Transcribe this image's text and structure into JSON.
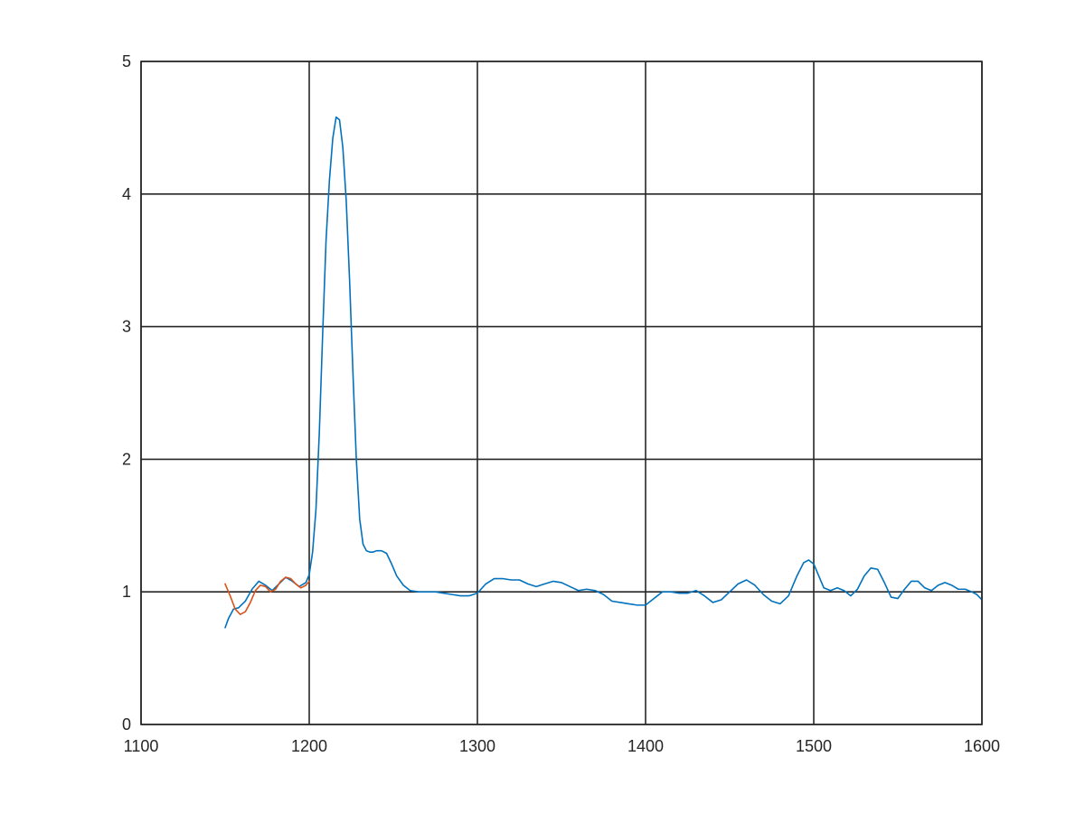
{
  "chart_data": {
    "type": "line",
    "title": "",
    "xlabel": "",
    "ylabel": "",
    "xlim": [
      1100,
      1600
    ],
    "ylim": [
      0,
      5
    ],
    "grid": true,
    "legend": "none",
    "x_ticks": [
      1100,
      1200,
      1300,
      1400,
      1500,
      1600
    ],
    "y_ticks": [
      0,
      1,
      2,
      3,
      4,
      5
    ],
    "x_tick_labels": [
      "1100",
      "1200",
      "1300",
      "1400",
      "1500",
      "1600"
    ],
    "y_tick_labels": [
      "0",
      "1",
      "2",
      "3",
      "4",
      "5"
    ],
    "series": [
      {
        "color": "#0072bd",
        "x": [
          1150,
          1152,
          1155,
          1158,
          1162,
          1166,
          1170,
          1174,
          1178,
          1182,
          1186,
          1190,
          1194,
          1198,
          1200,
          1202,
          1204,
          1206,
          1208,
          1210,
          1212,
          1214,
          1216,
          1218,
          1220,
          1222,
          1224,
          1226,
          1228,
          1230,
          1232,
          1234,
          1236,
          1238,
          1240,
          1243,
          1246,
          1249,
          1252,
          1256,
          1260,
          1265,
          1270,
          1275,
          1280,
          1285,
          1290,
          1295,
          1300,
          1305,
          1310,
          1315,
          1320,
          1325,
          1330,
          1335,
          1340,
          1345,
          1350,
          1355,
          1360,
          1365,
          1370,
          1375,
          1380,
          1385,
          1390,
          1395,
          1400,
          1405,
          1410,
          1415,
          1420,
          1425,
          1430,
          1435,
          1440,
          1445,
          1450,
          1455,
          1460,
          1465,
          1470,
          1475,
          1480,
          1485,
          1490,
          1494,
          1497,
          1500,
          1503,
          1506,
          1510,
          1514,
          1518,
          1522,
          1526,
          1530,
          1534,
          1538,
          1542,
          1546,
          1550,
          1554,
          1558,
          1562,
          1566,
          1570,
          1574,
          1578,
          1582,
          1586,
          1590,
          1594,
          1597,
          1600
        ],
        "y": [
          0.73,
          0.8,
          0.87,
          0.88,
          0.93,
          1.02,
          1.08,
          1.05,
          1.01,
          1.06,
          1.11,
          1.08,
          1.04,
          1.07,
          1.13,
          1.3,
          1.62,
          2.2,
          2.95,
          3.65,
          4.1,
          4.42,
          4.58,
          4.56,
          4.35,
          3.95,
          3.35,
          2.65,
          2.0,
          1.55,
          1.36,
          1.31,
          1.3,
          1.3,
          1.31,
          1.31,
          1.29,
          1.21,
          1.12,
          1.05,
          1.01,
          1.0,
          1.0,
          1.0,
          0.99,
          0.98,
          0.97,
          0.97,
          0.99,
          1.06,
          1.1,
          1.1,
          1.09,
          1.09,
          1.06,
          1.04,
          1.06,
          1.08,
          1.07,
          1.04,
          1.01,
          1.02,
          1.01,
          0.98,
          0.93,
          0.92,
          0.91,
          0.9,
          0.9,
          0.95,
          1.0,
          1.0,
          0.99,
          0.99,
          1.01,
          0.97,
          0.92,
          0.94,
          1.0,
          1.06,
          1.09,
          1.05,
          0.98,
          0.93,
          0.91,
          0.97,
          1.12,
          1.22,
          1.24,
          1.21,
          1.12,
          1.03,
          1.01,
          1.03,
          1.01,
          0.97,
          1.02,
          1.12,
          1.18,
          1.17,
          1.07,
          0.96,
          0.95,
          1.02,
          1.08,
          1.08,
          1.03,
          1.01,
          1.05,
          1.07,
          1.05,
          1.02,
          1.02,
          1.0,
          0.98,
          0.94
        ]
      },
      {
        "color": "#d95319",
        "x": [
          1150,
          1153,
          1156,
          1159,
          1162,
          1165,
          1168,
          1171,
          1174,
          1177,
          1180,
          1183,
          1186,
          1189,
          1192,
          1195,
          1198,
          1200
        ],
        "y": [
          1.06,
          0.97,
          0.87,
          0.83,
          0.85,
          0.92,
          1.01,
          1.05,
          1.04,
          1.0,
          1.02,
          1.08,
          1.11,
          1.1,
          1.06,
          1.03,
          1.05,
          1.08
        ]
      }
    ]
  }
}
